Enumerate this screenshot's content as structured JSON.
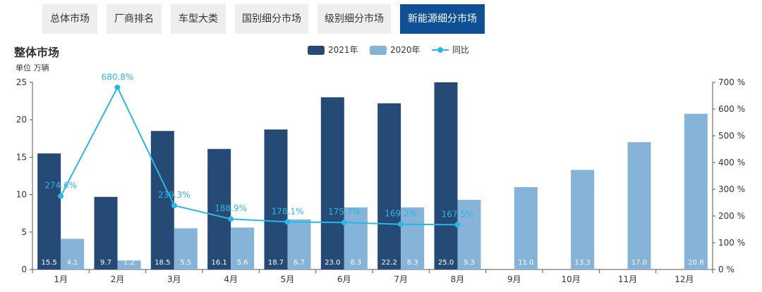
{
  "tabs": [
    {
      "label": "总体市场",
      "active": false
    },
    {
      "label": "厂商排名",
      "active": false
    },
    {
      "label": "车型大类",
      "active": false
    },
    {
      "label": "国别细分市场",
      "active": false
    },
    {
      "label": "级别细分市场",
      "active": false
    },
    {
      "label": "新能源细分市场",
      "active": true
    }
  ],
  "colors": {
    "series_2021": "#254a75",
    "series_2020": "#86b4d8",
    "yoy_line": "#2bb7e6",
    "active_tab": "#0f4f96"
  },
  "chart_data": {
    "type": "bar",
    "title": "整体市场",
    "unit_label": "单位 万辆",
    "categories": [
      "1月",
      "2月",
      "3月",
      "4月",
      "5月",
      "6月",
      "7月",
      "8月",
      "9月",
      "10月",
      "11月",
      "12月"
    ],
    "series": [
      {
        "name": "2021年",
        "type": "bar",
        "values": [
          15.5,
          9.7,
          18.5,
          16.1,
          18.7,
          23.0,
          22.2,
          25.0,
          null,
          null,
          null,
          null
        ]
      },
      {
        "name": "2020年",
        "type": "bar",
        "values": [
          4.1,
          1.2,
          5.5,
          5.6,
          6.7,
          8.3,
          8.3,
          9.3,
          11.0,
          13.3,
          17.0,
          20.8
        ]
      },
      {
        "name": "同比",
        "type": "line",
        "axis": "right",
        "values": [
          274.6,
          680.8,
          239.3,
          188.9,
          178.1,
          175.7,
          169.2,
          167.5,
          null,
          null,
          null,
          null
        ]
      }
    ],
    "y_left": {
      "min": 0,
      "max": 25,
      "ticks": [
        0,
        5,
        10,
        15,
        20,
        25
      ]
    },
    "y_right": {
      "min": 0,
      "max": 700,
      "ticks": [
        0,
        100,
        200,
        300,
        400,
        500,
        600,
        700
      ],
      "suffix": " %"
    },
    "legend_position": "top-center",
    "grid": false
  }
}
